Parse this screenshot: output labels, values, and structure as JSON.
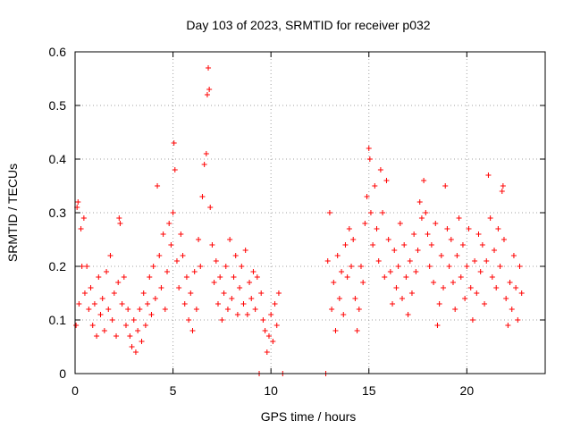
{
  "chart_data": {
    "type": "scatter",
    "title": "Day 103 of 2023, SRMTID for receiver p032",
    "xlabel": "GPS time / hours",
    "ylabel": "SRMTID / TECUs",
    "xlim": [
      0,
      24
    ],
    "ylim": [
      0,
      0.6
    ],
    "xticks": [
      0,
      5,
      10,
      15,
      20
    ],
    "xtick_labels": [
      "0",
      "5",
      "10",
      "15",
      "20"
    ],
    "yticks": [
      0,
      0.1,
      0.2,
      0.3,
      0.4,
      0.5,
      0.6
    ],
    "ytick_labels": [
      "0",
      "0.1",
      "0.2",
      "0.3",
      "0.4",
      "0.5",
      "0.6"
    ],
    "grid": true,
    "marker": "+",
    "series": [
      {
        "name": "SRMTID",
        "color": "#ff0000",
        "points": [
          [
            0.05,
            0.09
          ],
          [
            0.1,
            0.31
          ],
          [
            0.15,
            0.32
          ],
          [
            0.2,
            0.13
          ],
          [
            0.3,
            0.27
          ],
          [
            0.35,
            0.2
          ],
          [
            0.45,
            0.29
          ],
          [
            0.5,
            0.15
          ],
          [
            0.6,
            0.2
          ],
          [
            0.7,
            0.12
          ],
          [
            0.8,
            0.16
          ],
          [
            0.9,
            0.09
          ],
          [
            1.0,
            0.13
          ],
          [
            1.1,
            0.07
          ],
          [
            1.2,
            0.18
          ],
          [
            1.3,
            0.11
          ],
          [
            1.4,
            0.14
          ],
          [
            1.5,
            0.08
          ],
          [
            1.6,
            0.19
          ],
          [
            1.7,
            0.12
          ],
          [
            1.8,
            0.22
          ],
          [
            1.9,
            0.1
          ],
          [
            2.0,
            0.15
          ],
          [
            2.1,
            0.07
          ],
          [
            2.2,
            0.17
          ],
          [
            2.25,
            0.29
          ],
          [
            2.3,
            0.28
          ],
          [
            2.4,
            0.13
          ],
          [
            2.5,
            0.18
          ],
          [
            2.6,
            0.09
          ],
          [
            2.7,
            0.12
          ],
          [
            2.8,
            0.07
          ],
          [
            2.9,
            0.05
          ],
          [
            3.0,
            0.1
          ],
          [
            3.1,
            0.04
          ],
          [
            3.2,
            0.08
          ],
          [
            3.3,
            0.12
          ],
          [
            3.4,
            0.06
          ],
          [
            3.5,
            0.15
          ],
          [
            3.6,
            0.09
          ],
          [
            3.7,
            0.13
          ],
          [
            3.8,
            0.18
          ],
          [
            3.9,
            0.11
          ],
          [
            4.0,
            0.2
          ],
          [
            4.1,
            0.14
          ],
          [
            4.2,
            0.35
          ],
          [
            4.3,
            0.22
          ],
          [
            4.4,
            0.16
          ],
          [
            4.5,
            0.26
          ],
          [
            4.6,
            0.12
          ],
          [
            4.7,
            0.19
          ],
          [
            4.8,
            0.28
          ],
          [
            4.9,
            0.24
          ],
          [
            5.0,
            0.3
          ],
          [
            5.05,
            0.43
          ],
          [
            5.1,
            0.38
          ],
          [
            5.2,
            0.21
          ],
          [
            5.3,
            0.16
          ],
          [
            5.4,
            0.26
          ],
          [
            5.5,
            0.22
          ],
          [
            5.6,
            0.13
          ],
          [
            5.7,
            0.18
          ],
          [
            5.8,
            0.1
          ],
          [
            5.9,
            0.15
          ],
          [
            6.0,
            0.08
          ],
          [
            6.1,
            0.19
          ],
          [
            6.2,
            0.12
          ],
          [
            6.3,
            0.25
          ],
          [
            6.4,
            0.2
          ],
          [
            6.5,
            0.33
          ],
          [
            6.6,
            0.39
          ],
          [
            6.7,
            0.41
          ],
          [
            6.75,
            0.52
          ],
          [
            6.8,
            0.57
          ],
          [
            6.85,
            0.53
          ],
          [
            6.9,
            0.31
          ],
          [
            7.0,
            0.24
          ],
          [
            7.1,
            0.17
          ],
          [
            7.2,
            0.21
          ],
          [
            7.3,
            0.13
          ],
          [
            7.4,
            0.18
          ],
          [
            7.5,
            0.1
          ],
          [
            7.6,
            0.15
          ],
          [
            7.7,
            0.2
          ],
          [
            7.8,
            0.12
          ],
          [
            7.9,
            0.25
          ],
          [
            8.0,
            0.14
          ],
          [
            8.1,
            0.18
          ],
          [
            8.2,
            0.22
          ],
          [
            8.3,
            0.11
          ],
          [
            8.4,
            0.16
          ],
          [
            8.5,
            0.2
          ],
          [
            8.6,
            0.13
          ],
          [
            8.7,
            0.23
          ],
          [
            8.8,
            0.11
          ],
          [
            8.9,
            0.17
          ],
          [
            9.0,
            0.14
          ],
          [
            9.1,
            0.19
          ],
          [
            9.2,
            0.12
          ],
          [
            9.3,
            0.18
          ],
          [
            9.4,
            0.0
          ],
          [
            9.5,
            0.15
          ],
          [
            9.6,
            0.1
          ],
          [
            9.7,
            0.08
          ],
          [
            9.8,
            0.04
          ],
          [
            9.9,
            0.07
          ],
          [
            10.0,
            0.11
          ],
          [
            10.1,
            0.06
          ],
          [
            10.2,
            0.13
          ],
          [
            10.3,
            0.09
          ],
          [
            10.4,
            0.15
          ],
          [
            10.6,
            0.0
          ],
          [
            12.8,
            0.0
          ],
          [
            12.9,
            0.21
          ],
          [
            13.0,
            0.3
          ],
          [
            13.1,
            0.12
          ],
          [
            13.2,
            0.17
          ],
          [
            13.3,
            0.08
          ],
          [
            13.4,
            0.22
          ],
          [
            13.5,
            0.14
          ],
          [
            13.6,
            0.19
          ],
          [
            13.7,
            0.11
          ],
          [
            13.8,
            0.24
          ],
          [
            13.9,
            0.18
          ],
          [
            14.0,
            0.27
          ],
          [
            14.1,
            0.2
          ],
          [
            14.2,
            0.25
          ],
          [
            14.3,
            0.14
          ],
          [
            14.4,
            0.08
          ],
          [
            14.5,
            0.12
          ],
          [
            14.6,
            0.2
          ],
          [
            14.7,
            0.17
          ],
          [
            14.8,
            0.28
          ],
          [
            14.9,
            0.33
          ],
          [
            15.0,
            0.42
          ],
          [
            15.05,
            0.4
          ],
          [
            15.1,
            0.3
          ],
          [
            15.2,
            0.24
          ],
          [
            15.3,
            0.35
          ],
          [
            15.4,
            0.27
          ],
          [
            15.5,
            0.21
          ],
          [
            15.6,
            0.38
          ],
          [
            15.7,
            0.3
          ],
          [
            15.8,
            0.18
          ],
          [
            15.9,
            0.36
          ],
          [
            16.0,
            0.25
          ],
          [
            16.1,
            0.19
          ],
          [
            16.2,
            0.13
          ],
          [
            16.3,
            0.23
          ],
          [
            16.4,
            0.16
          ],
          [
            16.5,
            0.2
          ],
          [
            16.6,
            0.28
          ],
          [
            16.7,
            0.14
          ],
          [
            16.8,
            0.24
          ],
          [
            16.9,
            0.18
          ],
          [
            17.0,
            0.11
          ],
          [
            17.1,
            0.21
          ],
          [
            17.2,
            0.15
          ],
          [
            17.3,
            0.26
          ],
          [
            17.4,
            0.19
          ],
          [
            17.5,
            0.23
          ],
          [
            17.6,
            0.32
          ],
          [
            17.7,
            0.29
          ],
          [
            17.8,
            0.36
          ],
          [
            17.9,
            0.3
          ],
          [
            18.0,
            0.26
          ],
          [
            18.1,
            0.2
          ],
          [
            18.2,
            0.24
          ],
          [
            18.3,
            0.17
          ],
          [
            18.4,
            0.28
          ],
          [
            18.5,
            0.09
          ],
          [
            18.6,
            0.13
          ],
          [
            18.7,
            0.22
          ],
          [
            18.8,
            0.16
          ],
          [
            18.9,
            0.35
          ],
          [
            19.0,
            0.27
          ],
          [
            19.1,
            0.2
          ],
          [
            19.2,
            0.25
          ],
          [
            19.3,
            0.17
          ],
          [
            19.4,
            0.12
          ],
          [
            19.5,
            0.22
          ],
          [
            19.6,
            0.29
          ],
          [
            19.7,
            0.18
          ],
          [
            19.8,
            0.24
          ],
          [
            19.9,
            0.14
          ],
          [
            20.0,
            0.2
          ],
          [
            20.1,
            0.27
          ],
          [
            20.2,
            0.16
          ],
          [
            20.3,
            0.1
          ],
          [
            20.4,
            0.21
          ],
          [
            20.5,
            0.15
          ],
          [
            20.6,
            0.26
          ],
          [
            20.7,
            0.19
          ],
          [
            20.8,
            0.24
          ],
          [
            20.9,
            0.13
          ],
          [
            21.0,
            0.21
          ],
          [
            21.1,
            0.37
          ],
          [
            21.2,
            0.29
          ],
          [
            21.3,
            0.18
          ],
          [
            21.4,
            0.23
          ],
          [
            21.5,
            0.16
          ],
          [
            21.6,
            0.27
          ],
          [
            21.7,
            0.2
          ],
          [
            21.8,
            0.34
          ],
          [
            21.85,
            0.35
          ],
          [
            21.9,
            0.25
          ],
          [
            22.0,
            0.14
          ],
          [
            22.1,
            0.09
          ],
          [
            22.2,
            0.17
          ],
          [
            22.3,
            0.12
          ],
          [
            22.4,
            0.22
          ],
          [
            22.5,
            0.16
          ],
          [
            22.6,
            0.1
          ],
          [
            22.7,
            0.2
          ],
          [
            22.8,
            0.15
          ]
        ]
      }
    ]
  }
}
